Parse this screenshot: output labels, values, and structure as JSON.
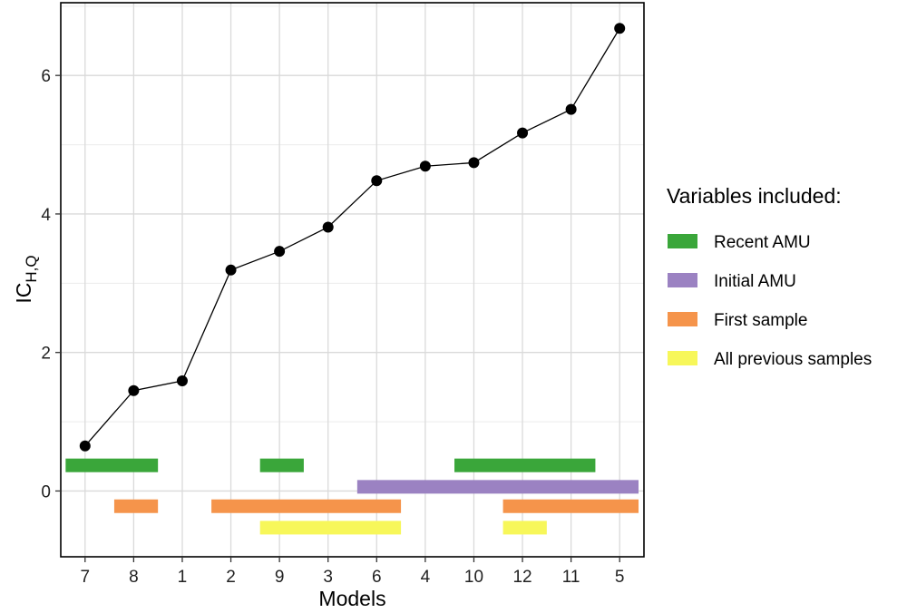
{
  "chart_data": {
    "type": "line",
    "xlabel": "Models",
    "ylabel_main": "IC",
    "ylabel_sub": "H,Q",
    "categories": [
      "7",
      "8",
      "1",
      "2",
      "9",
      "3",
      "6",
      "4",
      "10",
      "12",
      "11",
      "5"
    ],
    "values": [
      0.65,
      1.45,
      1.59,
      3.19,
      3.46,
      3.81,
      4.48,
      4.69,
      4.74,
      5.17,
      5.51,
      6.68
    ],
    "ylim": [
      -0.95,
      7.05
    ],
    "yticks": [
      0,
      2,
      4,
      6
    ],
    "grid": true,
    "line_color": "#000000",
    "indicators": [
      {
        "variable": "recent_amu",
        "y": 0.37,
        "spans": [
          [
            0,
            1
          ],
          [
            4,
            4
          ],
          [
            8,
            10
          ]
        ]
      },
      {
        "variable": "initial_amu",
        "y": 0.06,
        "spans": [
          [
            6,
            11
          ]
        ]
      },
      {
        "variable": "first_sample",
        "y": -0.22,
        "spans": [
          [
            1,
            1
          ],
          [
            3,
            6
          ],
          [
            9,
            11
          ]
        ]
      },
      {
        "variable": "all_previous",
        "y": -0.53,
        "spans": [
          [
            4,
            6
          ],
          [
            9,
            9
          ]
        ]
      }
    ],
    "legend": {
      "title": "Variables included:",
      "position": "right",
      "entries": [
        {
          "key": "recent_amu",
          "label": "Recent AMU",
          "color": "#3aa63a"
        },
        {
          "key": "initial_amu",
          "label": "Initial AMU",
          "color": "#9b82c2"
        },
        {
          "key": "first_sample",
          "label": "First sample",
          "color": "#f5944b"
        },
        {
          "key": "all_previous",
          "label": "All previous samples",
          "color": "#f7f75a"
        }
      ]
    }
  }
}
